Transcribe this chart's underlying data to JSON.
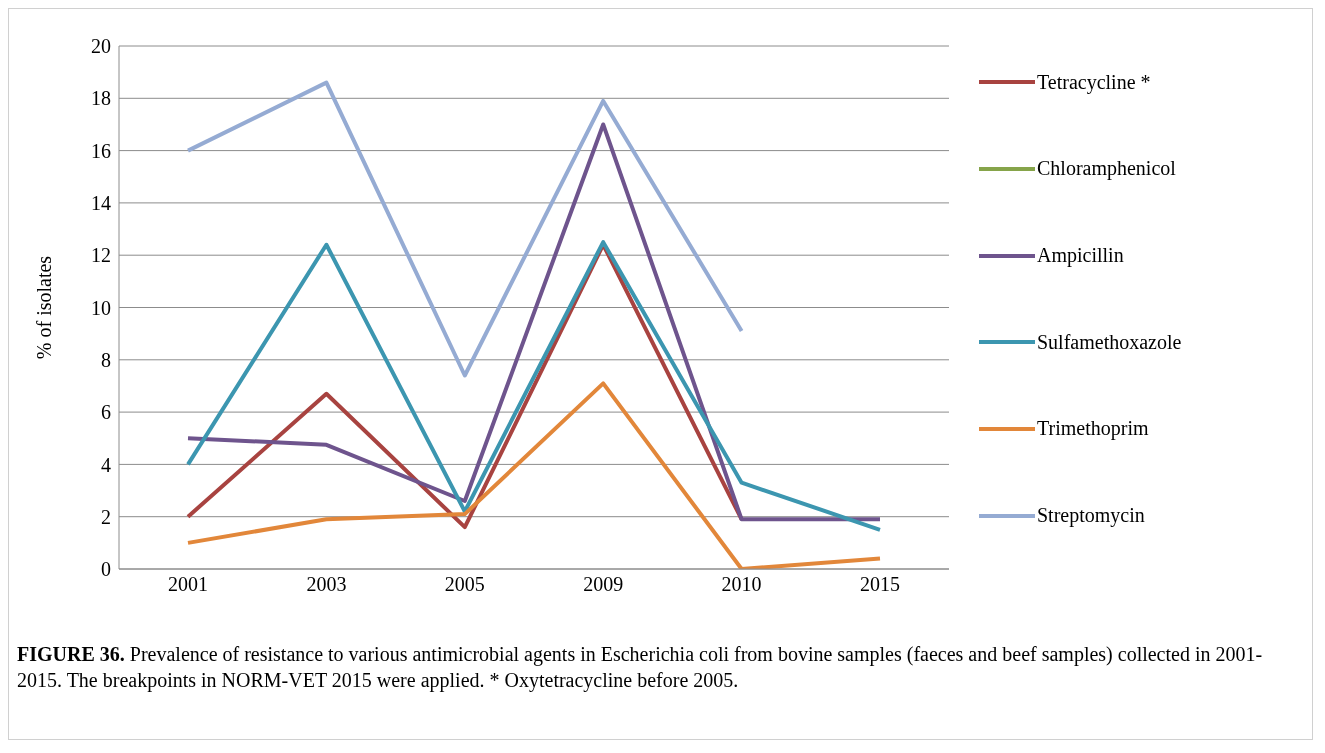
{
  "chart_data": {
    "type": "line",
    "title": "FIGURE 36.",
    "ylabel": "% of isolates",
    "categories": [
      "2001",
      "2003",
      "2005",
      "2009",
      "2010",
      "2015"
    ],
    "series": [
      {
        "name": "Tetracycline *",
        "color": "#a84340",
        "values": [
          2.0,
          6.7,
          1.6,
          12.4,
          1.9,
          null
        ]
      },
      {
        "name": "Chloramphenicol",
        "color": "#86a44a",
        "values": [
          null,
          null,
          null,
          null,
          null,
          null
        ]
      },
      {
        "name": "Ampicillin",
        "color": "#6e548d",
        "values": [
          5.0,
          4.75,
          2.6,
          17.0,
          1.9,
          1.9
        ]
      },
      {
        "name": "Sulfamethoxazole",
        "color": "#3c96b0",
        "values": [
          4.0,
          12.4,
          2.2,
          12.5,
          3.3,
          1.5
        ]
      },
      {
        "name": "Trimethoprim",
        "color": "#e2873a",
        "values": [
          1.0,
          1.9,
          2.1,
          7.1,
          0,
          0.4
        ]
      },
      {
        "name": "Streptomycin",
        "color": "#95abd3",
        "values": [
          16.0,
          18.6,
          7.4,
          17.9,
          9.1,
          null
        ]
      }
    ],
    "ylim": [
      0,
      20
    ],
    "yticks": [
      0,
      2,
      4,
      6,
      8,
      10,
      12,
      14,
      16,
      18,
      20
    ],
    "grid": "y",
    "legend": "right",
    "marker": "none",
    "line_style": "solid",
    "annotations": [
      "Prevalence of resistance to various antimicrobial agents in Escherichia coli from bovine samples (faeces and beef samples) collected in 2001-2015. The breakpoints in NORM-VET 2015 were applied. * Oxytetracycline before 2005."
    ]
  }
}
